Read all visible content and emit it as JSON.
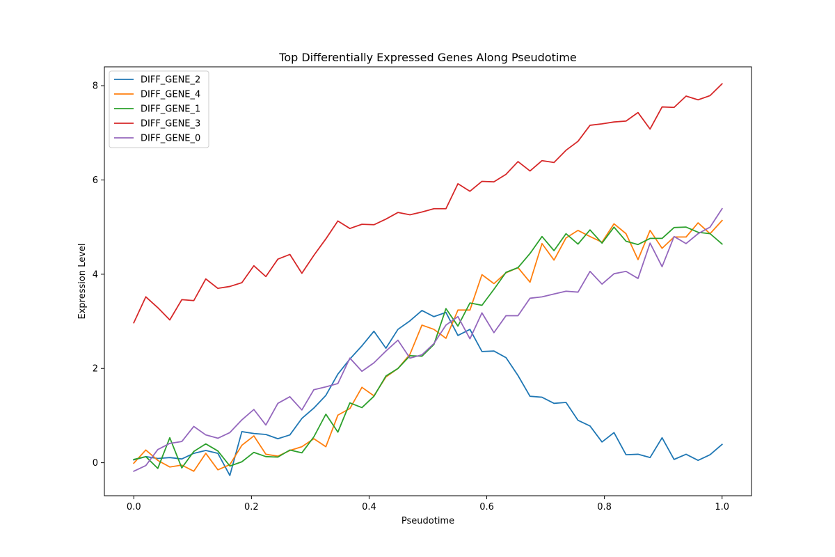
{
  "chart_data": {
    "type": "line",
    "title": "Top Differentially Expressed Genes Along Pseudotime",
    "xlabel": "Pseudotime",
    "ylabel": "Expression Level",
    "xlim": [
      -0.05,
      1.05
    ],
    "ylim": [
      -0.7,
      8.4
    ],
    "xticks": [
      0.0,
      0.2,
      0.4,
      0.6,
      0.8,
      1.0
    ],
    "xtick_labels": [
      "0.0",
      "0.2",
      "0.4",
      "0.6",
      "0.8",
      "1.0"
    ],
    "yticks": [
      0,
      2,
      4,
      6,
      8
    ],
    "ytick_labels": [
      "0",
      "2",
      "4",
      "6",
      "8"
    ],
    "grid": false,
    "legend_position": "top-left",
    "x": [
      0.0,
      0.0204,
      0.0408,
      0.0612,
      0.0816,
      0.102,
      0.1224,
      0.1429,
      0.1633,
      0.1837,
      0.2041,
      0.2245,
      0.2449,
      0.2653,
      0.2857,
      0.3061,
      0.3265,
      0.3469,
      0.3673,
      0.3878,
      0.4082,
      0.4286,
      0.449,
      0.4694,
      0.4898,
      0.5102,
      0.5306,
      0.551,
      0.5714,
      0.5918,
      0.6122,
      0.6327,
      0.6531,
      0.6735,
      0.6939,
      0.7143,
      0.7347,
      0.7551,
      0.7755,
      0.7959,
      0.8163,
      0.8367,
      0.8571,
      0.8776,
      0.898,
      0.9184,
      0.9388,
      0.9592,
      0.9796,
      1.0
    ],
    "series": [
      {
        "name": "DIFF_GENE_2",
        "color": "#1f77b4",
        "values": [
          0.06,
          0.13,
          0.09,
          0.11,
          0.08,
          0.2,
          0.26,
          0.2,
          -0.27,
          0.66,
          0.62,
          0.6,
          0.51,
          0.59,
          0.94,
          1.16,
          1.43,
          1.88,
          2.2,
          2.48,
          2.79,
          2.43,
          2.83,
          3.01,
          3.23,
          3.1,
          3.19,
          2.7,
          2.83,
          2.36,
          2.37,
          2.23,
          1.85,
          1.41,
          1.39,
          1.26,
          1.28,
          0.9,
          0.78,
          0.44,
          0.64,
          0.17,
          0.18,
          0.11,
          0.53,
          0.07,
          0.18,
          0.05,
          0.17,
          0.39
        ]
      },
      {
        "name": "DIFF_GENE_4",
        "color": "#ff7f0e",
        "values": [
          -0.01,
          0.27,
          0.05,
          -0.09,
          -0.05,
          -0.18,
          0.2,
          -0.15,
          -0.04,
          0.37,
          0.57,
          0.18,
          0.14,
          0.26,
          0.34,
          0.51,
          0.34,
          1.01,
          1.15,
          1.6,
          1.42,
          1.82,
          2.0,
          2.3,
          2.92,
          2.83,
          2.64,
          3.24,
          3.24,
          3.99,
          3.8,
          4.03,
          4.14,
          3.83,
          4.65,
          4.3,
          4.77,
          4.93,
          4.8,
          4.68,
          5.07,
          4.86,
          4.31,
          4.93,
          4.55,
          4.79,
          4.79,
          5.09,
          4.86,
          5.14
        ]
      },
      {
        "name": "DIFF_GENE_1",
        "color": "#2ca02c",
        "values": [
          0.07,
          0.13,
          -0.12,
          0.53,
          -0.11,
          0.24,
          0.4,
          0.25,
          -0.07,
          0.02,
          0.22,
          0.13,
          0.12,
          0.27,
          0.21,
          0.55,
          1.03,
          0.65,
          1.27,
          1.17,
          1.41,
          1.84,
          2.0,
          2.27,
          2.26,
          2.51,
          3.27,
          2.9,
          3.39,
          3.34,
          3.68,
          4.04,
          4.14,
          4.44,
          4.8,
          4.5,
          4.86,
          4.64,
          4.94,
          4.66,
          5.0,
          4.7,
          4.63,
          4.76,
          4.76,
          4.99,
          5.0,
          4.89,
          4.86,
          4.64
        ]
      },
      {
        "name": "DIFF_GENE_3",
        "color": "#d62728",
        "values": [
          2.97,
          3.52,
          3.29,
          3.03,
          3.46,
          3.44,
          3.9,
          3.7,
          3.74,
          3.82,
          4.18,
          3.95,
          4.32,
          4.42,
          4.02,
          4.4,
          4.75,
          5.13,
          4.97,
          5.06,
          5.05,
          5.17,
          5.31,
          5.26,
          5.32,
          5.39,
          5.39,
          5.92,
          5.76,
          5.97,
          5.96,
          6.12,
          6.39,
          6.19,
          6.41,
          6.37,
          6.63,
          6.82,
          7.16,
          7.19,
          7.23,
          7.25,
          7.43,
          7.08,
          7.55,
          7.54,
          7.78,
          7.7,
          7.79,
          8.04
        ]
      },
      {
        "name": "DIFF_GENE_0",
        "color": "#9467bd",
        "values": [
          -0.18,
          -0.06,
          0.28,
          0.41,
          0.45,
          0.77,
          0.59,
          0.52,
          0.64,
          0.91,
          1.13,
          0.8,
          1.26,
          1.4,
          1.12,
          1.55,
          1.61,
          1.68,
          2.22,
          1.94,
          2.12,
          2.37,
          2.6,
          2.22,
          2.29,
          2.53,
          2.92,
          3.1,
          2.63,
          3.18,
          2.76,
          3.12,
          3.12,
          3.49,
          3.52,
          3.58,
          3.64,
          3.62,
          4.06,
          3.79,
          4.01,
          4.06,
          3.91,
          4.66,
          4.16,
          4.8,
          4.65,
          4.86,
          5.0,
          5.39
        ]
      }
    ]
  }
}
